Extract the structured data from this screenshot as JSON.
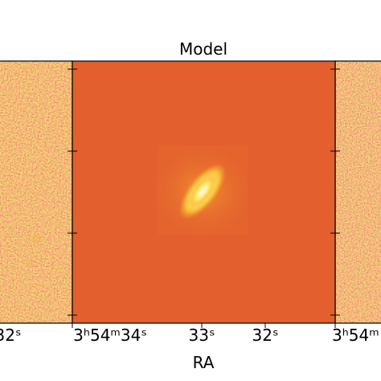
{
  "chart_data": {
    "type": "heatmap",
    "title": "Model",
    "xlabel": "RA",
    "ylabel": "",
    "colormap": "inferno-like (orange background, yellow-white core)",
    "colors": {
      "background": "#e35f2e",
      "noise_dark": "#b8324a",
      "noise_light": "#f08c3c",
      "core": "#fff6c8",
      "frame": "#000000"
    },
    "panels": [
      {
        "role": "left-neighbor (partially visible)",
        "content": "noise image with faint sources",
        "x_ticks": [
          "32ˢ"
        ]
      },
      {
        "role": "center",
        "title": "Model",
        "content": "smooth elongated galaxy model, tilted ~45°",
        "x_ticks": [
          "3ʰ54ᵐ34ˢ",
          "33ˢ",
          "32ˢ"
        ]
      },
      {
        "role": "right-neighbor (partially visible)",
        "content": "noise residual image",
        "x_ticks": [
          "3ʰ54ᵐ"
        ]
      }
    ],
    "y_ticks_count": 4,
    "grid": false
  }
}
